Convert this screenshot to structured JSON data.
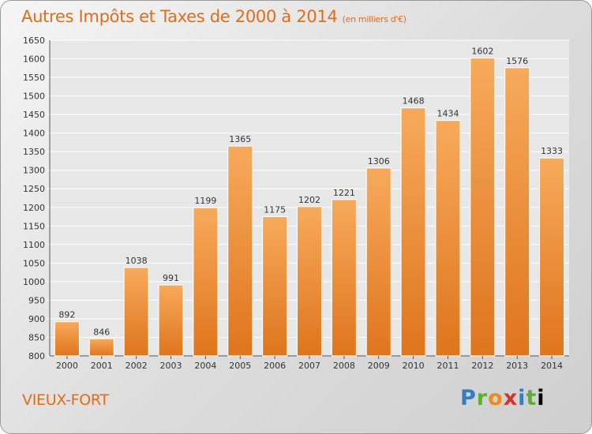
{
  "title": "Autres Impôts et Taxes de 2000 à 2014",
  "unit": "(en milliers d'€)",
  "commune": "VIEUX-FORT",
  "logo": "Proxiti",
  "colors": {
    "accent": "#e36d16",
    "bar_top": "#f7a95b",
    "bar_bottom": "#e0761e"
  },
  "chart_data": {
    "type": "bar",
    "title": "Autres Impôts et Taxes de 2000 à 2014",
    "subtitle": "(en milliers d'€)",
    "categories": [
      "2000",
      "2001",
      "2002",
      "2003",
      "2004",
      "2005",
      "2006",
      "2007",
      "2008",
      "2009",
      "2010",
      "2011",
      "2012",
      "2013",
      "2014"
    ],
    "values": [
      892,
      846,
      1038,
      991,
      1199,
      1365,
      1175,
      1202,
      1221,
      1306,
      1468,
      1434,
      1602,
      1576,
      1333
    ],
    "ylim": [
      800,
      1650
    ],
    "yticks": [
      800,
      850,
      900,
      950,
      1000,
      1050,
      1100,
      1150,
      1200,
      1250,
      1300,
      1350,
      1400,
      1450,
      1500,
      1550,
      1600,
      1650
    ],
    "grid": true,
    "xlabel": "",
    "ylabel": ""
  }
}
